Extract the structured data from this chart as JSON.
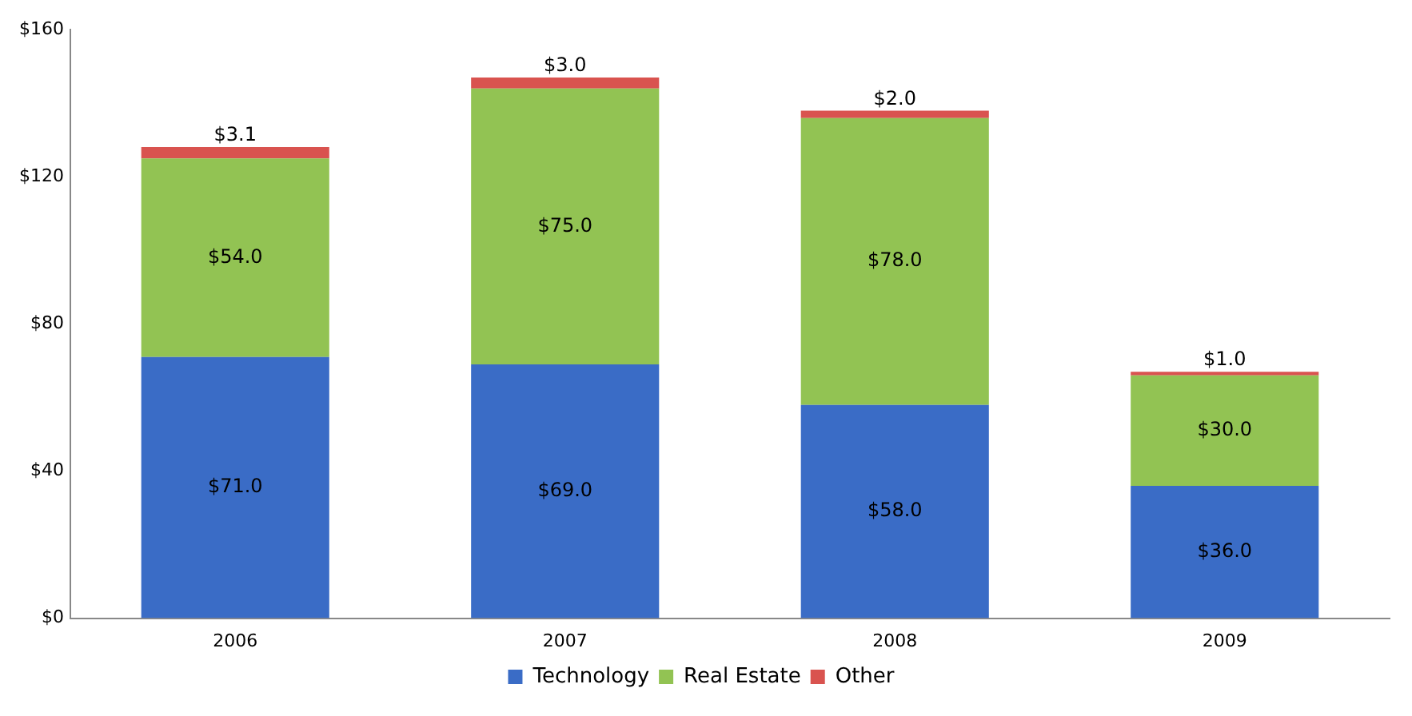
{
  "chart_data": {
    "type": "bar",
    "stacked": true,
    "categories": [
      "2006",
      "2007",
      "2008",
      "2009"
    ],
    "series": [
      {
        "name": "Technology",
        "color": "#3a6cc6",
        "values": [
          71.0,
          69.0,
          58.0,
          36.0
        ],
        "value_labels": [
          "$71.0",
          "$69.0",
          "$58.0",
          "$36.0"
        ]
      },
      {
        "name": "Real Estate",
        "color": "#92c353",
        "values": [
          54.0,
          75.0,
          78.0,
          30.0
        ],
        "value_labels": [
          "$54.0",
          "$75.0",
          "$78.0",
          "$30.0"
        ]
      },
      {
        "name": "Other",
        "color": "#d9534f",
        "values": [
          3.1,
          3.0,
          2.0,
          1.0
        ],
        "value_labels": [
          "$3.1",
          "$3.0",
          "$2.0",
          "$1.0"
        ]
      }
    ],
    "ylim": [
      0,
      160
    ],
    "yticks": [
      {
        "value": 0,
        "label": "$0"
      },
      {
        "value": 40,
        "label": "$40"
      },
      {
        "value": 80,
        "label": "$80"
      },
      {
        "value": 120,
        "label": "$120"
      },
      {
        "value": 160,
        "label": "$160"
      }
    ],
    "grid": false,
    "legend": "bottom"
  }
}
